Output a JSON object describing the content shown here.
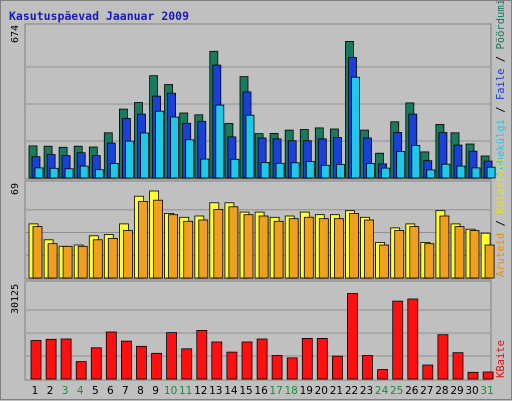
{
  "chart_data": {
    "type": "bar",
    "title": "Kasutuspäevad Jaanuar 2009",
    "categories": [
      "1",
      "2",
      "3",
      "4",
      "5",
      "6",
      "7",
      "8",
      "9",
      "10",
      "11",
      "12",
      "13",
      "14",
      "15",
      "16",
      "17",
      "18",
      "19",
      "20",
      "21",
      "22",
      "23",
      "24",
      "25",
      "26",
      "27",
      "28",
      "29",
      "30",
      "31"
    ],
    "weekend_days": [
      "3",
      "4",
      "10",
      "11",
      "17",
      "18",
      "24",
      "25",
      "31"
    ],
    "panels": [
      {
        "id": "top",
        "ymax_label": "674",
        "ymax": 674,
        "legend": [
          {
            "text": "Pöördumisi",
            "color": "#1a7a5e"
          },
          {
            "text": " / ",
            "color": "#000000"
          },
          {
            "text": "Faile",
            "color": "#1a40d8"
          },
          {
            "text": " / ",
            "color": "#000000"
          },
          {
            "text": "Lehekülgi",
            "color": "#20c8e8"
          }
        ],
        "series": [
          {
            "name": "Pöördumisi",
            "color": "#1a7a5e",
            "values": [
              146,
              145,
              140,
              145,
              141,
              206,
              314,
              344,
              466,
              426,
              296,
              288,
              577,
              248,
              462,
              202,
              203,
              218,
              221,
              228,
              223,
              622,
              218,
              113,
              256,
              342,
              119,
              244,
              206,
              155,
              100
            ]
          },
          {
            "name": "Faile",
            "color": "#1a40d8",
            "values": [
              97,
              107,
              102,
              115,
              102,
              159,
              271,
              291,
              373,
              386,
              249,
              258,
              514,
              187,
              392,
              182,
              178,
              170,
              170,
              178,
              185,
              549,
              182,
              64,
              207,
              291,
              79,
              207,
              150,
              122,
              77
            ]
          },
          {
            "name": "Lehekülgi",
            "color": "#20c8e8",
            "values": [
              46,
              44,
              42,
              54,
              38,
              66,
              168,
              205,
              304,
              278,
              174,
              86,
              332,
              85,
              286,
              71,
              67,
              69,
              75,
              58,
              62,
              459,
              66,
              45,
              120,
              148,
              37,
              63,
              54,
              46,
              49
            ]
          }
        ]
      },
      {
        "id": "mid",
        "ymax_label": "69",
        "ymax": 69,
        "legend": [
          {
            "text": "Külastusi",
            "color": "#e8e030"
          },
          {
            "text": " / ",
            "color": "#000000"
          },
          {
            "text": "Aruteid",
            "color": "#e89010"
          }
        ],
        "series": [
          {
            "name": "Külastusi",
            "color": "#ffff30",
            "values": [
              41,
              29,
              24,
              25,
              32,
              33,
              41,
              62,
              66,
              49,
              46,
              47,
              57,
              57,
              50,
              50,
              46,
              47,
              50,
              48,
              48,
              51,
              46,
              27,
              38,
              41,
              27,
              51,
              41,
              37,
              34
            ]
          },
          {
            "name": "Aruteid",
            "color": "#f0a020",
            "values": [
              39,
              26,
              24,
              24,
              29,
              30,
              36,
              58,
              59,
              48,
              43,
              44,
              52,
              54,
              48,
              47,
              43,
              45,
              46,
              45,
              45,
              49,
              44,
              25,
              36,
              39,
              26,
              47,
              39,
              36,
              25
            ]
          }
        ]
      },
      {
        "id": "bot",
        "ymax_label": "30125",
        "ymax": 30125,
        "legend": [
          {
            "text": "KBaite",
            "color": "#e01010"
          }
        ],
        "series": [
          {
            "name": "KBaite",
            "color": "#ff1010",
            "values": [
              12600,
              13000,
              13100,
              5700,
              10200,
              15400,
              12400,
              10700,
              8400,
              15200,
              9900,
              15900,
              12100,
              8800,
              12100,
              13100,
              7700,
              6900,
              13300,
              13300,
              7500,
              28000,
              7700,
              3100,
              25500,
              26200,
              4600,
              14500,
              8600,
              2200,
              2300
            ]
          }
        ]
      }
    ]
  }
}
